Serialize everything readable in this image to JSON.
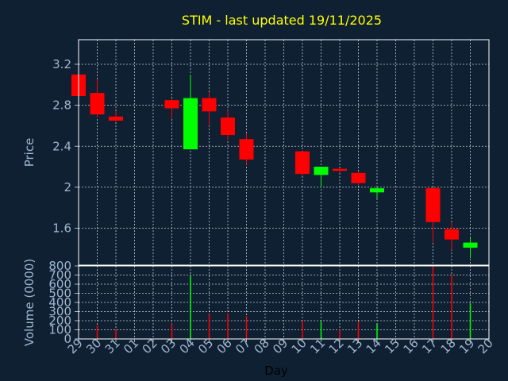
{
  "chart_data": {
    "type": "candlestick",
    "title": "STIM - last updated 19/11/2025",
    "xlabel": "Day",
    "x_ticks": [
      "29",
      "30",
      "31",
      "01",
      "02",
      "03",
      "04",
      "05",
      "06",
      "07",
      "08",
      "09",
      "10",
      "11",
      "12",
      "13",
      "14",
      "15",
      "16",
      "17",
      "18",
      "19",
      "20"
    ],
    "price_axis": {
      "ylabel": "Price",
      "ylim": [
        1.24,
        3.44
      ],
      "ticks": [
        "3.2",
        "2.8",
        "2.4",
        "2",
        "1.6"
      ],
      "tick_values": [
        3.2,
        2.8,
        2.4,
        2.0,
        1.6
      ],
      "grid": true
    },
    "volume_axis": {
      "ylabel": "Volume (0000)",
      "ylim": [
        0,
        800
      ],
      "ticks": [
        "800",
        "700",
        "600",
        "500",
        "400",
        "300",
        "200",
        "100",
        "0"
      ],
      "tick_values": [
        800,
        700,
        600,
        500,
        400,
        300,
        200,
        100,
        0
      ],
      "grid": true
    },
    "candles": [
      {
        "day": "29",
        "open": 3.1,
        "close": 2.89,
        "high": 3.1,
        "low": 2.89
      },
      {
        "day": "30",
        "open": 2.92,
        "close": 2.71,
        "high": 3.05,
        "low": 2.68
      },
      {
        "day": "31",
        "open": 2.69,
        "close": 2.65,
        "high": 2.74,
        "low": 2.64
      },
      {
        "day": "03",
        "open": 2.85,
        "close": 2.77,
        "high": 2.86,
        "low": 2.67
      },
      {
        "day": "04",
        "open": 2.37,
        "close": 2.87,
        "high": 3.1,
        "low": 2.37
      },
      {
        "day": "05",
        "open": 2.87,
        "close": 2.74,
        "high": 2.93,
        "low": 2.6
      },
      {
        "day": "06",
        "open": 2.68,
        "close": 2.51,
        "high": 2.75,
        "low": 2.46
      },
      {
        "day": "07",
        "open": 2.47,
        "close": 2.27,
        "high": 2.52,
        "low": 2.22
      },
      {
        "day": "10",
        "open": 2.35,
        "close": 2.13,
        "high": 2.35,
        "low": 2.11
      },
      {
        "day": "11",
        "open": 2.12,
        "close": 2.2,
        "high": 2.2,
        "low": 2.0
      },
      {
        "day": "12",
        "open": 2.18,
        "close": 2.16,
        "high": 2.18,
        "low": 2.14
      },
      {
        "day": "13",
        "open": 2.14,
        "close": 2.04,
        "high": 2.15,
        "low": 2.02
      },
      {
        "day": "14",
        "open": 1.95,
        "close": 1.99,
        "high": 2.0,
        "low": 1.89
      },
      {
        "day": "17",
        "open": 1.99,
        "close": 1.66,
        "high": 2.0,
        "low": 1.46
      },
      {
        "day": "18",
        "open": 1.59,
        "close": 1.49,
        "high": 1.66,
        "low": 1.39
      },
      {
        "day": "19",
        "open": 1.41,
        "close": 1.46,
        "high": 1.51,
        "low": 1.31
      }
    ],
    "volume": [
      {
        "day": "29",
        "value": 0,
        "direction": "down"
      },
      {
        "day": "30",
        "value": 150,
        "direction": "down"
      },
      {
        "day": "31",
        "value": 100,
        "direction": "down"
      },
      {
        "day": "03",
        "value": 170,
        "direction": "down"
      },
      {
        "day": "04",
        "value": 690,
        "direction": "up"
      },
      {
        "day": "05",
        "value": 270,
        "direction": "down"
      },
      {
        "day": "06",
        "value": 280,
        "direction": "down"
      },
      {
        "day": "07",
        "value": 250,
        "direction": "down"
      },
      {
        "day": "10",
        "value": 200,
        "direction": "down"
      },
      {
        "day": "11",
        "value": 190,
        "direction": "up"
      },
      {
        "day": "12",
        "value": 100,
        "direction": "down"
      },
      {
        "day": "13",
        "value": 190,
        "direction": "down"
      },
      {
        "day": "14",
        "value": 170,
        "direction": "up"
      },
      {
        "day": "17",
        "value": 800,
        "direction": "down"
      },
      {
        "day": "18",
        "value": 700,
        "direction": "down"
      },
      {
        "day": "19",
        "value": 390,
        "direction": "up"
      }
    ],
    "colors": {
      "background": "#0f2033",
      "up": "#00ff00",
      "down": "#ff0000",
      "title": "#ffff00",
      "axis_text": "#9fb6cc",
      "grid": "#ffffff"
    }
  }
}
